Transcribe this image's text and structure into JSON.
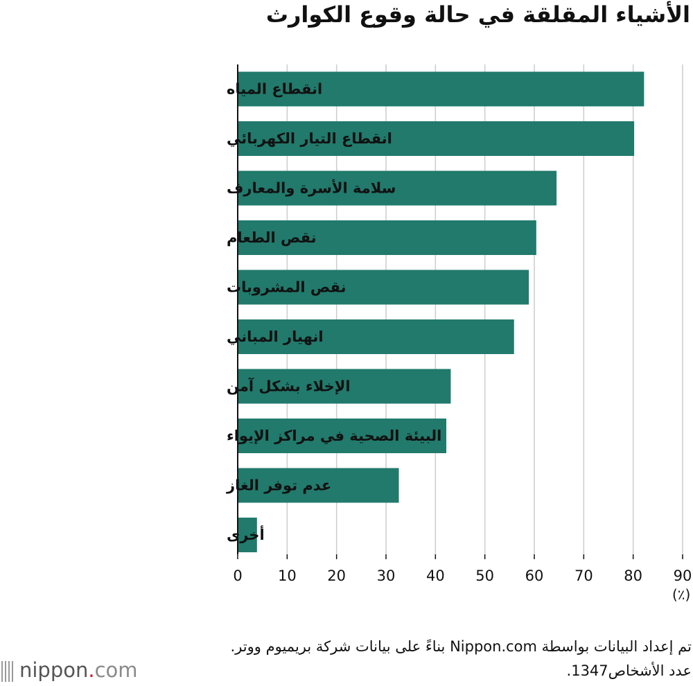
{
  "title": "الأشياء المقلقة في حالة وقوع الكوارث",
  "unit_label": "(٪)",
  "notes": {
    "source": "تم إعداد البيانات بواسطة Nippon.com بناءً على بيانات شركة بريميوم ووتر.",
    "respondents": "عدد الأشخاص1347."
  },
  "logo": {
    "name": "nippon",
    "dot": ".",
    "tld": "com"
  },
  "colors": {
    "bar": "#217A6C",
    "grid": "#cccccc",
    "axis": "#111111"
  },
  "chart_data": {
    "type": "bar",
    "orientation": "horizontal",
    "title": "الأشياء المقلقة في حالة وقوع الكوارث",
    "xlabel": "(٪)",
    "ylabel": "",
    "xlim": [
      0,
      90
    ],
    "xticks": [
      0,
      10,
      20,
      30,
      40,
      50,
      60,
      70,
      80,
      90
    ],
    "grid": true,
    "categories": [
      "انقطاع المياه",
      "انقطاع التيار الكهربائي",
      "سلامة الأسرة والمعارف",
      "نقص الطعام",
      "نقص المشروبات",
      "انهيار المباني",
      "الإخلاء بشكل آمن",
      "البيئة الصحية في مراكز الإيواء",
      "عدم توفر الغاز",
      "أخرى"
    ],
    "values": [
      82.2,
      80.2,
      64.5,
      60.4,
      58.9,
      55.9,
      43.1,
      42.2,
      32.6,
      3.9
    ]
  }
}
